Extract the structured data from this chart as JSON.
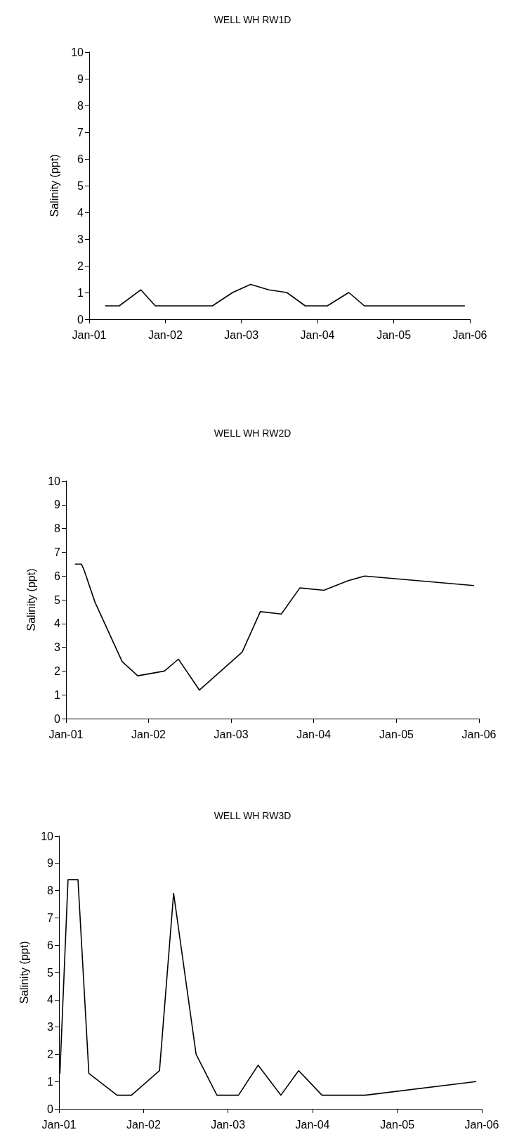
{
  "chart_data": [
    {
      "type": "line",
      "title": "WELL WH RW1D",
      "ylabel": "Salinity (ppt)",
      "marker": "none",
      "line_style": "solid",
      "x": [
        "2001-03-20",
        "2001-05-25",
        "2001-09-06",
        "2001-11-14",
        "2002-08-15",
        "2002-11-20",
        "2003-02-14",
        "2003-05-13",
        "2003-08-07",
        "2003-11-03",
        "2004-02-17",
        "2004-05-30",
        "2004-08-13",
        "2005-12-06"
      ],
      "series": [
        {
          "color": "#000000",
          "values": [
            0.5,
            0.5,
            1.1,
            0.5,
            0.5,
            1.0,
            1.3,
            1.1,
            1.0,
            0.5,
            0.5,
            1.0,
            0.5,
            0.5
          ]
        }
      ],
      "xlim": [
        "2001-01-01",
        "2006-01-01"
      ],
      "xticks": [
        {
          "value": "2001-01-01",
          "label": "Jan-01"
        },
        {
          "value": "2002-01-01",
          "label": "Jan-02"
        },
        {
          "value": "2003-01-01",
          "label": "Jan-03"
        },
        {
          "value": "2004-01-01",
          "label": "Jan-04"
        },
        {
          "value": "2005-01-01",
          "label": "Jan-05"
        },
        {
          "value": "2006-01-01",
          "label": "Jan-06"
        }
      ],
      "ylim": [
        0,
        10
      ],
      "yticks": [
        0,
        1,
        2,
        3,
        4,
        5,
        6,
        7,
        8,
        9,
        10
      ]
    },
    {
      "type": "line",
      "title": "WELL WH RW2D",
      "ylabel": "Salinity (ppt)",
      "marker": "none",
      "line_style": "solid",
      "x": [
        "2001-02-11",
        "2001-03-10",
        "2001-03-20",
        "2001-05-09",
        "2001-09-06",
        "2001-11-14",
        "2002-03-12",
        "2002-05-13",
        "2002-08-14",
        "2003-02-19",
        "2003-05-10",
        "2003-08-11",
        "2003-11-01",
        "2004-02-15",
        "2004-05-31",
        "2004-08-14",
        "2005-12-08"
      ],
      "series": [
        {
          "color": "#000000",
          "values": [
            6.5,
            6.5,
            6.3,
            4.9,
            2.4,
            1.8,
            2.0,
            2.5,
            1.2,
            2.8,
            4.5,
            4.4,
            5.5,
            5.4,
            5.8,
            6.0,
            5.6
          ]
        }
      ],
      "xlim": [
        "2001-01-01",
        "2006-01-01"
      ],
      "xticks": [
        {
          "value": "2001-01-01",
          "label": "Jan-01"
        },
        {
          "value": "2002-01-01",
          "label": "Jan-02"
        },
        {
          "value": "2003-01-01",
          "label": "Jan-03"
        },
        {
          "value": "2004-01-01",
          "label": "Jan-04"
        },
        {
          "value": "2005-01-01",
          "label": "Jan-05"
        },
        {
          "value": "2006-01-01",
          "label": "Jan-06"
        }
      ],
      "ylim": [
        0,
        10
      ],
      "yticks": [
        0,
        1,
        2,
        3,
        4,
        5,
        6,
        7,
        8,
        9,
        10
      ]
    },
    {
      "type": "line",
      "title": "WELL WH RW3D",
      "ylabel": "Salinity (ppt)",
      "marker": "none",
      "line_style": "solid",
      "x": [
        "2001-01-05",
        "2001-02-09",
        "2001-03-24",
        "2001-05-10",
        "2001-09-09",
        "2001-11-10",
        "2002-03-11",
        "2002-05-11",
        "2002-08-16",
        "2002-11-14",
        "2003-02-15",
        "2003-05-11",
        "2003-08-17",
        "2003-11-02",
        "2004-02-11",
        "2004-08-15",
        "2005-12-06"
      ],
      "series": [
        {
          "color": "#000000",
          "values": [
            1.3,
            8.4,
            8.4,
            1.3,
            0.5,
            0.5,
            1.4,
            7.9,
            2.0,
            0.5,
            0.5,
            1.6,
            0.5,
            1.4,
            0.5,
            0.5,
            1.0
          ]
        }
      ],
      "xlim": [
        "2001-01-01",
        "2006-01-01"
      ],
      "xticks": [
        {
          "value": "2001-01-01",
          "label": "Jan-01"
        },
        {
          "value": "2002-01-01",
          "label": "Jan-02"
        },
        {
          "value": "2003-01-01",
          "label": "Jan-03"
        },
        {
          "value": "2004-01-01",
          "label": "Jan-04"
        },
        {
          "value": "2005-01-01",
          "label": "Jan-05"
        },
        {
          "value": "2006-01-01",
          "label": "Jan-06"
        }
      ],
      "ylim": [
        0,
        10
      ],
      "yticks": [
        0,
        1,
        2,
        3,
        4,
        5,
        6,
        7,
        8,
        9,
        10
      ]
    }
  ]
}
